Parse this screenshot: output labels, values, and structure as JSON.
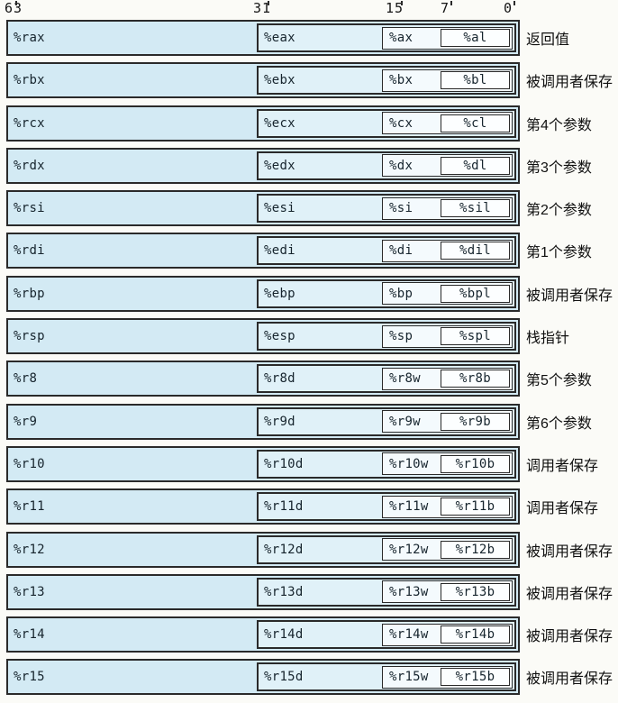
{
  "bit_labels": [
    "63",
    "31",
    "15",
    "7",
    "0"
  ],
  "rows": [
    {
      "r64": "%rax",
      "r32": "%eax",
      "r16": "%ax",
      "r8": "%al",
      "desc": "返回值"
    },
    {
      "r64": "%rbx",
      "r32": "%ebx",
      "r16": "%bx",
      "r8": "%bl",
      "desc": "被调用者保存"
    },
    {
      "r64": "%rcx",
      "r32": "%ecx",
      "r16": "%cx",
      "r8": "%cl",
      "desc": "第4个参数"
    },
    {
      "r64": "%rdx",
      "r32": "%edx",
      "r16": "%dx",
      "r8": "%dl",
      "desc": "第3个参数"
    },
    {
      "r64": "%rsi",
      "r32": "%esi",
      "r16": "%si",
      "r8": "%sil",
      "desc": "第2个参数"
    },
    {
      "r64": "%rdi",
      "r32": "%edi",
      "r16": "%di",
      "r8": "%dil",
      "desc": "第1个参数"
    },
    {
      "r64": "%rbp",
      "r32": "%ebp",
      "r16": "%bp",
      "r8": "%bpl",
      "desc": "被调用者保存"
    },
    {
      "r64": "%rsp",
      "r32": "%esp",
      "r16": "%sp",
      "r8": "%spl",
      "desc": "栈指针"
    },
    {
      "r64": "%r8",
      "r32": "%r8d",
      "r16": "%r8w",
      "r8": "%r8b",
      "desc": "第5个参数"
    },
    {
      "r64": "%r9",
      "r32": "%r9d",
      "r16": "%r9w",
      "r8": "%r9b",
      "desc": "第6个参数"
    },
    {
      "r64": "%r10",
      "r32": "%r10d",
      "r16": "%r10w",
      "r8": "%r10b",
      "desc": "调用者保存"
    },
    {
      "r64": "%r11",
      "r32": "%r11d",
      "r16": "%r11w",
      "r8": "%r11b",
      "desc": "调用者保存"
    },
    {
      "r64": "%r12",
      "r32": "%r12d",
      "r16": "%r12w",
      "r8": "%r12b",
      "desc": "被调用者保存"
    },
    {
      "r64": "%r13",
      "r32": "%r13d",
      "r16": "%r13w",
      "r8": "%r13b",
      "desc": "被调用者保存"
    },
    {
      "r64": "%r14",
      "r32": "%r14d",
      "r16": "%r14w",
      "r8": "%r14b",
      "desc": "被调用者保存"
    },
    {
      "r64": "%r15",
      "r32": "%r15d",
      "r16": "%r15w",
      "r8": "%r15b",
      "desc": "被调用者保存"
    }
  ],
  "colors": {
    "box_fill_64": "#d3eaf4",
    "box_fill_32": "#e0f1f8",
    "box_fill_16": "#f4fafd",
    "box_fill_8": "#fcfeff",
    "border": "#2a2a2a",
    "page_bg": "#fbfbf7"
  }
}
